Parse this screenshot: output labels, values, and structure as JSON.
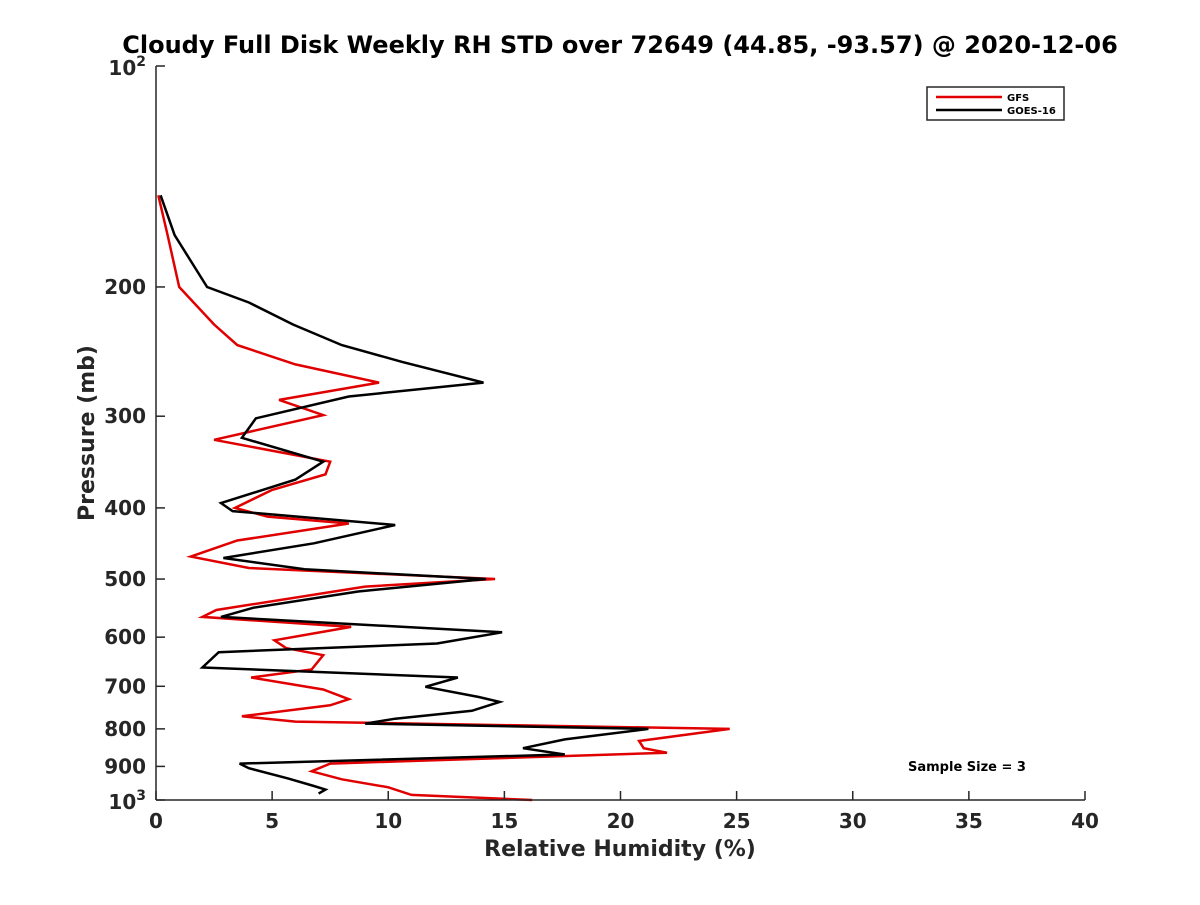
{
  "chart_data": {
    "type": "line",
    "title": "Cloudy Full Disk Weekly RH STD over 72649 (44.85, -93.57) @ 2020-12-06",
    "xlabel": "Relative Humidity (%)",
    "ylabel": "Pressure (mb)",
    "xlim": [
      0,
      40
    ],
    "ylim": [
      100,
      1000
    ],
    "y_scale": "log",
    "y_reversed": true,
    "x_ticks": [
      0,
      5,
      10,
      15,
      20,
      25,
      30,
      35,
      40
    ],
    "x_tick_labels": [
      "0",
      "5",
      "10",
      "15",
      "20",
      "25",
      "30",
      "35",
      "40"
    ],
    "y_ticks": [
      {
        "value": 100,
        "base": "10",
        "exp": "2"
      },
      {
        "value": 200,
        "label": "200"
      },
      {
        "value": 300,
        "label": "300"
      },
      {
        "value": 400,
        "label": "400"
      },
      {
        "value": 500,
        "label": "500"
      },
      {
        "value": 600,
        "label": "600"
      },
      {
        "value": 700,
        "label": "700"
      },
      {
        "value": 800,
        "label": "800"
      },
      {
        "value": 900,
        "label": "900"
      },
      {
        "value": 1000,
        "base": "10",
        "exp": "3"
      }
    ],
    "grid": false,
    "legend_position": "top-right",
    "annotation": "Sample Size = 3",
    "series": [
      {
        "name": "GFS",
        "color": "#e00000",
        "points": [
          [
            0.1,
            150
          ],
          [
            0.5,
            170
          ],
          [
            1.0,
            200
          ],
          [
            2.5,
            225
          ],
          [
            3.5,
            240
          ],
          [
            6.0,
            255
          ],
          [
            9.6,
            270
          ],
          [
            5.3,
            285
          ],
          [
            7.2,
            299
          ],
          [
            2.5,
            323
          ],
          [
            7.5,
            346
          ],
          [
            7.3,
            360
          ],
          [
            5.0,
            378
          ],
          [
            3.4,
            400
          ],
          [
            4.8,
            411
          ],
          [
            8.3,
            420
          ],
          [
            3.5,
            443
          ],
          [
            1.5,
            466
          ],
          [
            4.0,
            483
          ],
          [
            14.6,
            500
          ],
          [
            9.0,
            512
          ],
          [
            2.6,
            551
          ],
          [
            2.0,
            563
          ],
          [
            8.4,
            581
          ],
          [
            5.1,
            606
          ],
          [
            5.6,
            621
          ],
          [
            7.2,
            635
          ],
          [
            6.7,
            664
          ],
          [
            4.1,
            681
          ],
          [
            7.2,
            707
          ],
          [
            8.3,
            729
          ],
          [
            7.5,
            743
          ],
          [
            3.7,
            769
          ],
          [
            6.0,
            782
          ],
          [
            24.7,
            800
          ],
          [
            20.8,
            831
          ],
          [
            21.0,
            850
          ],
          [
            22.0,
            862
          ],
          [
            7.5,
            892
          ],
          [
            6.7,
            914
          ],
          [
            8.0,
            937
          ],
          [
            10.0,
            961
          ],
          [
            11.0,
            984
          ],
          [
            16.2,
            1000
          ]
        ]
      },
      {
        "name": "GOES-16",
        "color": "#000000",
        "points": [
          [
            0.2,
            150
          ],
          [
            0.8,
            170
          ],
          [
            2.2,
            200
          ],
          [
            4.0,
            210
          ],
          [
            5.9,
            225
          ],
          [
            8.0,
            240
          ],
          [
            10.6,
            253
          ],
          [
            14.1,
            270
          ],
          [
            8.3,
            282
          ],
          [
            4.3,
            302
          ],
          [
            3.7,
            321
          ],
          [
            7.2,
            346
          ],
          [
            6.0,
            366
          ],
          [
            2.8,
            394
          ],
          [
            3.3,
            404
          ],
          [
            10.3,
            422
          ],
          [
            6.8,
            447
          ],
          [
            2.9,
            468
          ],
          [
            6.4,
            485
          ],
          [
            14.2,
            500
          ],
          [
            8.7,
            520
          ],
          [
            4.2,
            547
          ],
          [
            2.8,
            563
          ],
          [
            14.9,
            591
          ],
          [
            12.1,
            612
          ],
          [
            2.7,
            629
          ],
          [
            2.0,
            660
          ],
          [
            13.0,
            681
          ],
          [
            11.6,
            701
          ],
          [
            13.9,
            724
          ],
          [
            14.8,
            735
          ],
          [
            13.6,
            756
          ],
          [
            10.3,
            775
          ],
          [
            9.0,
            787
          ],
          [
            21.2,
            800
          ],
          [
            17.6,
            827
          ],
          [
            15.8,
            850
          ],
          [
            17.6,
            867
          ],
          [
            3.6,
            892
          ],
          [
            4.0,
            905
          ],
          [
            5.7,
            935
          ],
          [
            6.8,
            957
          ],
          [
            7.3,
            968
          ],
          [
            7.0,
            980
          ]
        ]
      }
    ]
  }
}
